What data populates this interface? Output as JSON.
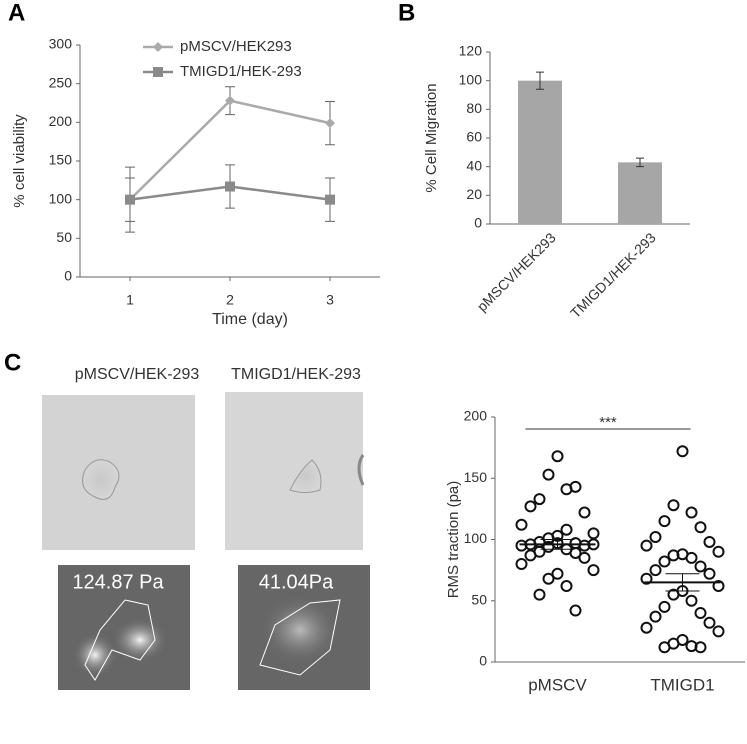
{
  "chart_data": [
    {
      "type": "line",
      "panel": "A",
      "xlabel": "Time (day)",
      "ylabel": "% cell viability",
      "categories": [
        "1",
        "2",
        "3"
      ],
      "series": [
        {
          "name": "pMSCV/HEK293",
          "color": "#aaaaaa",
          "marker": "diamond",
          "values": [
            100,
            228,
            199
          ],
          "errors": [
            28,
            18,
            28
          ]
        },
        {
          "name": "TMIGD1/HEK-293",
          "color": "#8a8a8a",
          "marker": "square",
          "values": [
            100,
            117,
            100
          ],
          "errors": [
            42,
            28,
            28
          ]
        }
      ],
      "ylim": [
        0,
        300
      ],
      "yticks": [
        0,
        50,
        100,
        150,
        200,
        250,
        300
      ]
    },
    {
      "type": "bar",
      "panel": "B",
      "ylabel": "% Cell Migration",
      "categories": [
        "pMSCV/HEK293",
        "TMIGD1/HEK-293"
      ],
      "values": [
        100,
        43
      ],
      "errors": [
        6,
        3
      ],
      "color": "#a6a6a6",
      "ylim": [
        0,
        120
      ],
      "yticks": [
        0,
        20,
        40,
        60,
        80,
        100,
        120
      ]
    },
    {
      "type": "scatter",
      "ylabel": "RMS traction (pa)",
      "annotation": "***",
      "categories": [
        "pMSCV",
        "TMIGD1"
      ],
      "groups": [
        {
          "values": [
            168,
            153,
            141,
            133,
            143,
            127,
            122,
            112,
            105,
            103,
            101,
            108,
            98,
            97,
            96,
            95,
            95,
            96,
            97,
            94,
            92,
            90,
            89,
            87,
            85,
            80,
            75,
            72,
            68,
            62,
            55,
            42
          ],
          "mean": 96,
          "sem": 4
        },
        {
          "values": [
            172,
            128,
            122,
            115,
            110,
            102,
            98,
            95,
            90,
            88,
            87,
            85,
            82,
            78,
            75,
            72,
            68,
            62,
            58,
            55,
            50,
            45,
            40,
            37,
            32,
            28,
            25,
            18,
            15,
            13,
            12,
            12
          ],
          "mean": 65,
          "sem": 7
        }
      ],
      "ylim": [
        0,
        200
      ],
      "yticks": [
        0,
        50,
        100,
        150,
        200
      ]
    }
  ],
  "panel_c": {
    "label": "C",
    "images": [
      {
        "title": "pMSCV/HEK-293",
        "traction": "124.87 Pa"
      },
      {
        "title": "TMIGD1/HEK-293",
        "traction": "41.04Pa"
      }
    ]
  }
}
